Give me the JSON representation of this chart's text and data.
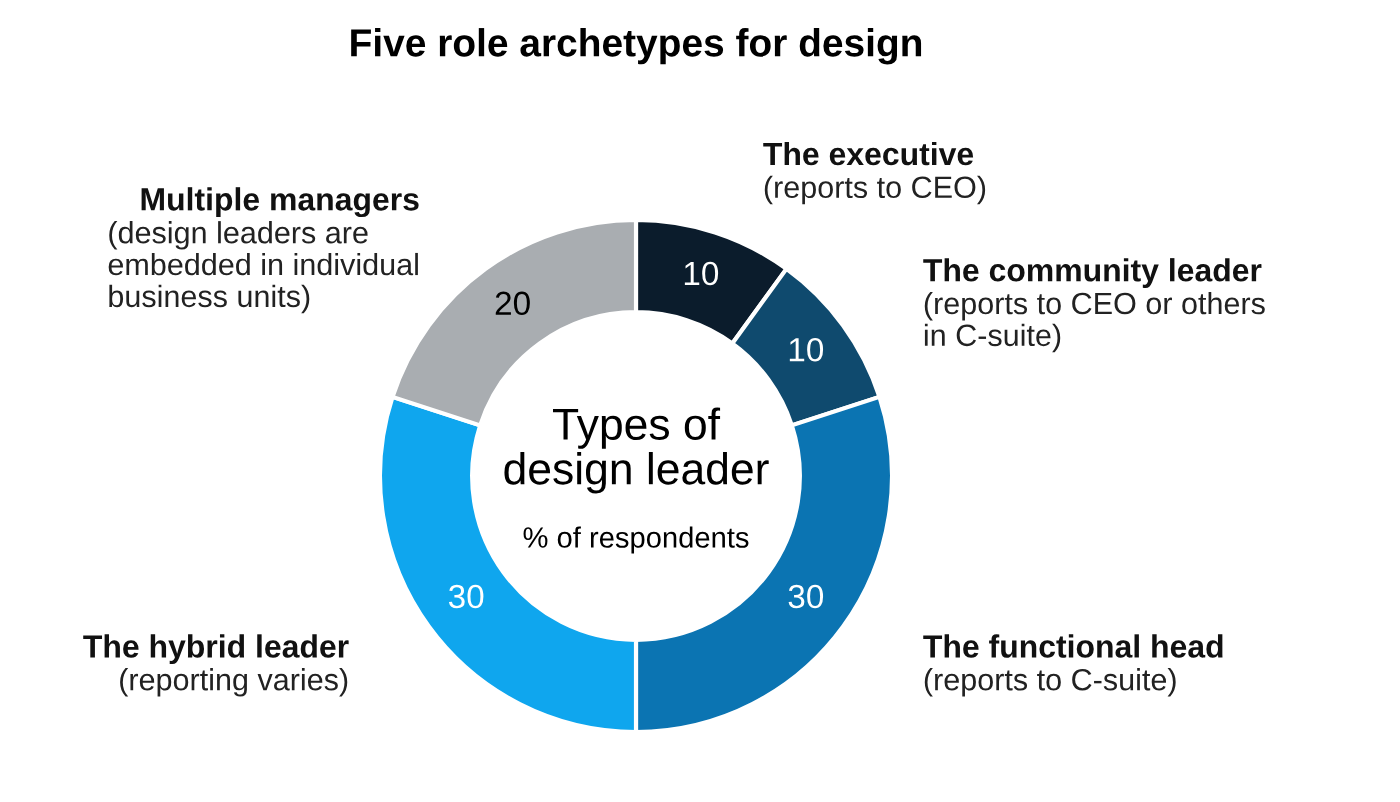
{
  "chart_data": {
    "type": "donut",
    "title": "Five role archetypes for design",
    "subtitle": "Types of\ndesign leader",
    "annotations": [
      "% of respondents"
    ],
    "categories": [
      "The executive\n(reports to CEO)",
      "The community leader\n(reports to CEO or others\nin C-suite)",
      "The functional head\n(reports to C-suite)",
      "The hybrid leader\n(reporting varies)",
      "Multiple managers\n(design leaders are\nembedded in individual\nbusiness units)"
    ],
    "values": [
      10,
      10,
      30,
      30,
      20
    ],
    "colors": [
      "#0b1c2c",
      "#0f4a6e",
      "#0b74b2",
      "#0fa6ee",
      "#a9adb1"
    ],
    "data_labels": true
  }
}
